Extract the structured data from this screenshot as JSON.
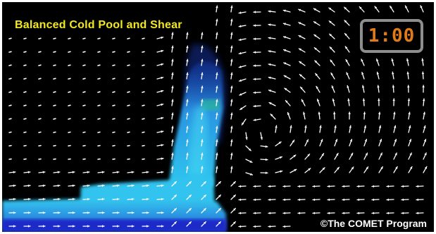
{
  "title": "Balanced Cold Pool and Shear",
  "timer": "1:00",
  "credit": "©The COMET Program",
  "colors": {
    "background": "#000000",
    "title": "#f2e81a",
    "timer_digits": "#e07b17",
    "timer_border": "#8e8e8e",
    "arrows": "#ffffff",
    "cold_pool_deep": "#1a3fd6",
    "cold_pool_mid": "#1f9fe0",
    "cold_pool_light": "#3ad0f0"
  }
}
